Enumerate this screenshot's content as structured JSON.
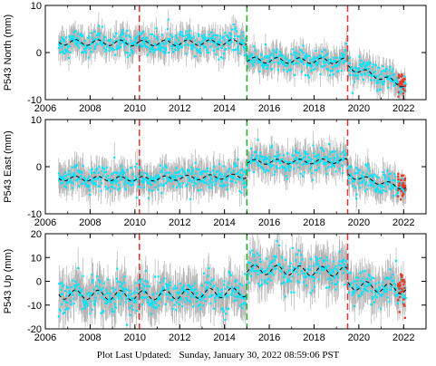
{
  "footer": {
    "label": "Plot Last Updated:",
    "value": "Sunday, January 30, 2022 08:59:06 PST"
  },
  "colors": {
    "data": "#00e5ff",
    "error_bars": "#b3b3b3",
    "model": "#000000",
    "earthquake_offsets": "#e8302e",
    "antenna_change": "#22b322",
    "recent_points": "#e23a2a"
  },
  "chart_data": [
    {
      "type": "scatter",
      "ylabel": "P543 North (mm)",
      "xlim": [
        2006,
        2023
      ],
      "ylim": [
        -10,
        10
      ],
      "xticks": [
        2006,
        2008,
        2010,
        2012,
        2014,
        2016,
        2018,
        2020,
        2022
      ],
      "yticks": [
        -10,
        0,
        10
      ],
      "xtick_labels": [
        "2006",
        "2008",
        "2010",
        "2012",
        "2014",
        "2016",
        "2018",
        "2020",
        "2022"
      ],
      "ytick_labels": [
        "-10",
        "0",
        "10"
      ],
      "data_start": 2006.6,
      "data_end": 2022.1,
      "offset_lines": [
        {
          "x": 2010.2,
          "color": "red"
        },
        {
          "x": 2015.0,
          "color": "green"
        },
        {
          "x": 2019.5,
          "color": "red"
        }
      ],
      "model_trend": {
        "x": [
          2006.6,
          2010.2,
          2010.2,
          2015.0,
          2015.0,
          2019.5,
          2019.5,
          2022.1
        ],
        "y": [
          2.2,
          2.0,
          2.0,
          2.2,
          -1.6,
          -1.8,
          -3.0,
          -7.0
        ]
      },
      "seasonal_amplitude": 0.6,
      "data_scatter_sd": 1.2,
      "error_bar_halfwidth": 2.6
    },
    {
      "type": "scatter",
      "ylabel": "P543 East (mm)",
      "xlim": [
        2006,
        2023
      ],
      "ylim": [
        -10,
        10
      ],
      "xticks": [
        2006,
        2008,
        2010,
        2012,
        2014,
        2016,
        2018,
        2020,
        2022
      ],
      "yticks": [
        -10,
        0,
        10
      ],
      "xtick_labels": [
        "2006",
        "2008",
        "2010",
        "2012",
        "2014",
        "2016",
        "2018",
        "2020",
        "2022"
      ],
      "ytick_labels": [
        "-10",
        "0",
        "10"
      ],
      "data_start": 2006.6,
      "data_end": 2022.1,
      "offset_lines": [
        {
          "x": 2010.2,
          "color": "red"
        },
        {
          "x": 2015.0,
          "color": "green"
        },
        {
          "x": 2019.5,
          "color": "red"
        }
      ],
      "model_trend": {
        "x": [
          2006.6,
          2010.2,
          2010.2,
          2015.0,
          2015.0,
          2019.5,
          2019.5,
          2022.1
        ],
        "y": [
          -2.5,
          -2.6,
          -2.6,
          -2.0,
          1.0,
          1.2,
          -1.8,
          -4.5
        ]
      },
      "seasonal_amplitude": 0.5,
      "data_scatter_sd": 1.3,
      "error_bar_halfwidth": 3.0
    },
    {
      "type": "scatter",
      "ylabel": "P543 Up (mm)",
      "xlim": [
        2006,
        2023
      ],
      "ylim": [
        -20,
        20
      ],
      "xticks": [
        2006,
        2008,
        2010,
        2012,
        2014,
        2016,
        2018,
        2020,
        2022
      ],
      "yticks": [
        -20,
        -10,
        0,
        10,
        20
      ],
      "xtick_labels": [
        "2006",
        "2008",
        "2010",
        "2012",
        "2014",
        "2016",
        "2018",
        "2020",
        "2022"
      ],
      "ytick_labels": [
        "-20",
        "-10",
        "0",
        "10",
        "20"
      ],
      "data_start": 2006.6,
      "data_end": 2022.1,
      "offset_lines": [
        {
          "x": 2010.2,
          "color": "red"
        },
        {
          "x": 2015.0,
          "color": "green"
        },
        {
          "x": 2019.5,
          "color": "red"
        }
      ],
      "model_trend": {
        "x": [
          2006.6,
          2010.2,
          2010.2,
          2015.0,
          2015.0,
          2019.5,
          2019.5,
          2022.1
        ],
        "y": [
          -5.5,
          -6.0,
          -6.0,
          -4.5,
          5.0,
          4.0,
          -1.5,
          -3.5
        ]
      },
      "seasonal_amplitude": 2.0,
      "data_scatter_sd": 3.5,
      "error_bar_halfwidth": 8.0
    }
  ]
}
